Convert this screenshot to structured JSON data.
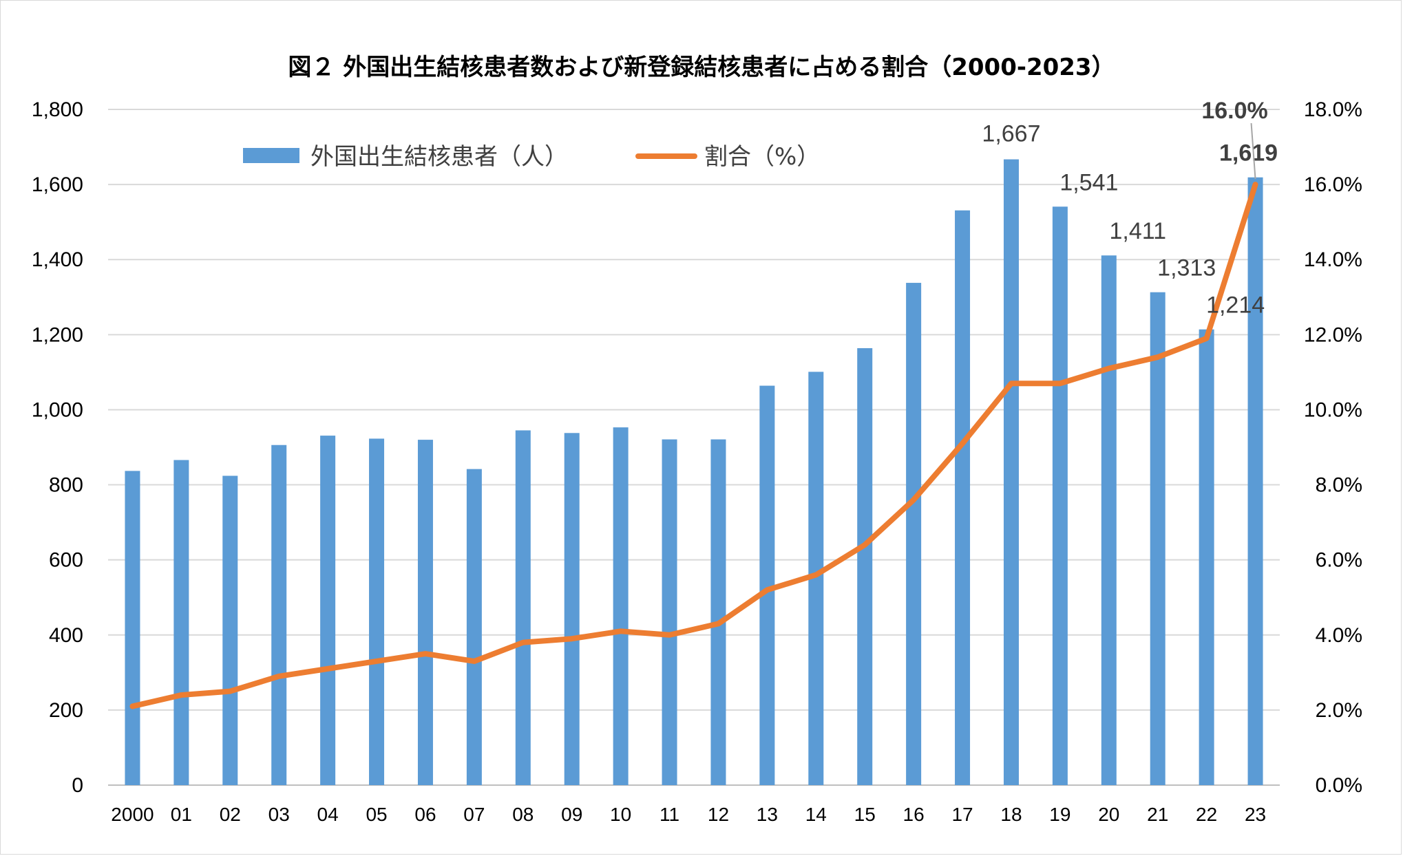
{
  "chart_data": {
    "type": "bar+line",
    "title": "図２ 外国出生結核患者数および新登録結核患者に占める割合（2000-2023）",
    "categories": [
      "2000",
      "01",
      "02",
      "03",
      "04",
      "05",
      "06",
      "07",
      "08",
      "09",
      "10",
      "11",
      "12",
      "13",
      "14",
      "15",
      "16",
      "17",
      "18",
      "19",
      "20",
      "21",
      "22",
      "23"
    ],
    "series": [
      {
        "name": "外国出生結核患者（人）",
        "type": "bar",
        "axis": "left",
        "color": "#5b9bd5",
        "values": [
          837,
          866,
          824,
          906,
          931,
          923,
          920,
          842,
          945,
          938,
          953,
          921,
          921,
          1064,
          1101,
          1164,
          1338,
          1531,
          1667,
          1541,
          1411,
          1313,
          1214,
          1619
        ]
      },
      {
        "name": "割合（%）",
        "type": "line",
        "axis": "right",
        "color": "#ed7d31",
        "values": [
          2.1,
          2.4,
          2.5,
          2.9,
          3.1,
          3.3,
          3.5,
          3.3,
          3.8,
          3.9,
          4.1,
          4.0,
          4.3,
          5.2,
          5.6,
          6.4,
          7.6,
          9.1,
          10.7,
          10.7,
          11.1,
          11.4,
          11.9,
          16.0
        ]
      }
    ],
    "left_axis": {
      "ylim": [
        0,
        1800
      ],
      "ticks": [
        "0",
        "200",
        "400",
        "600",
        "800",
        "1,000",
        "1,200",
        "1,400",
        "1,600",
        "1,800"
      ]
    },
    "right_axis": {
      "ylim": [
        0,
        18
      ],
      "ticks": [
        "0.0%",
        "2.0%",
        "4.0%",
        "6.0%",
        "8.0%",
        "10.0%",
        "12.0%",
        "14.0%",
        "16.0%",
        "18.0%"
      ]
    },
    "bar_labels": [
      {
        "index": 18,
        "text": "1,667",
        "bold": false
      },
      {
        "index": 19,
        "text": "1,541",
        "bold": false
      },
      {
        "index": 20,
        "text": "1,411",
        "bold": false
      },
      {
        "index": 21,
        "text": "1,313",
        "bold": false
      },
      {
        "index": 22,
        "text": "1,214",
        "bold": false
      },
      {
        "index": 23,
        "text": "1,619",
        "bold": true
      }
    ],
    "line_labels": [
      {
        "index": 23,
        "text": "16.0%",
        "bold": true
      }
    ],
    "grid": true,
    "legend_position": "top-left"
  }
}
